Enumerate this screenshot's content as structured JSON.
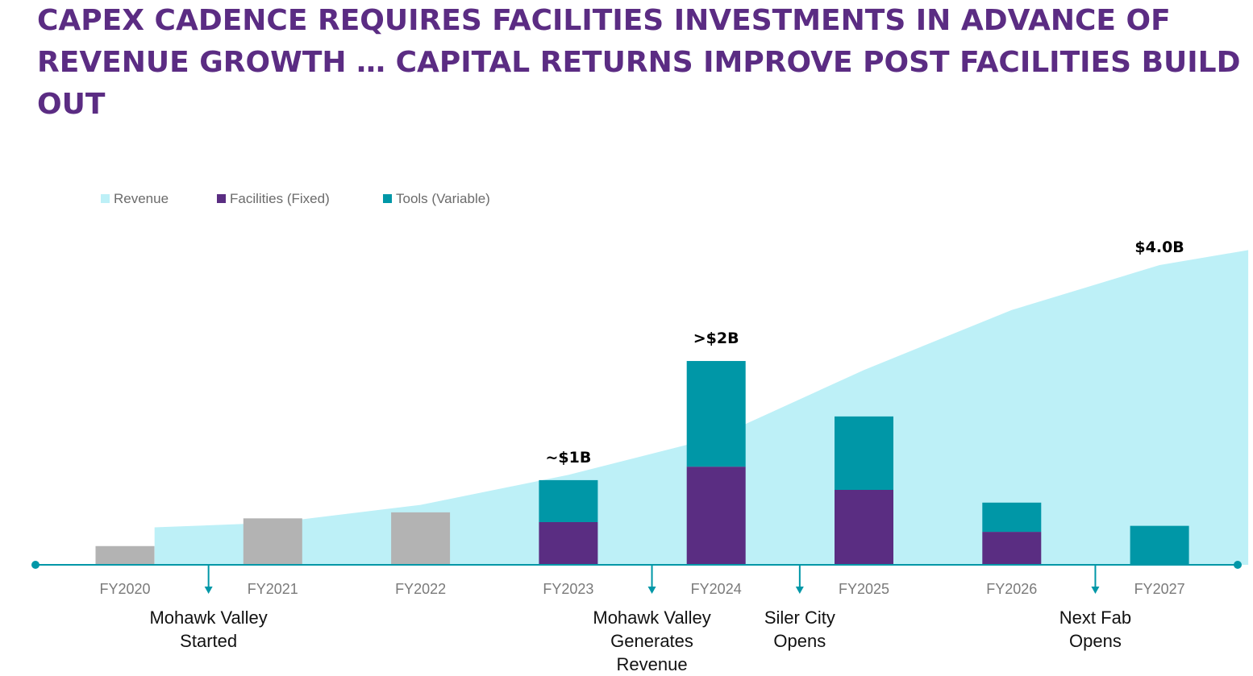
{
  "title": "CAPEX CADENCE REQUIRES FACILITIES INVESTMENTS IN ADVANCE OF REVENUE GROWTH … CAPITAL RETURNS IMPROVE POST FACILITIES BUILD OUT",
  "colors": {
    "title": "#5b2c83",
    "revenue": "#bdf0f7",
    "facilities": "#5a2d82",
    "tools": "#0097a7",
    "historical": "#b3b3b3",
    "axis": "#0097a7"
  },
  "chart_data": {
    "type": "bar",
    "categories": [
      "FY2020",
      "FY2021",
      "FY2022",
      "FY2023",
      "FY2024",
      "FY2025",
      "FY2026",
      "FY2027"
    ],
    "legend": [
      "Revenue",
      "Facilities (Fixed)",
      "Tools (Variable)"
    ],
    "legend_position": "top-left",
    "grid": false,
    "ylim": [
      0,
      4.5
    ],
    "capex_total": [
      0.25,
      0.62,
      0.7,
      1.1,
      2.7,
      2.0,
      0.85,
      0.5
    ],
    "series": [
      {
        "name": "Facilities (Fixed)",
        "values": [
          0,
          0,
          0,
          0.57,
          1.31,
          1.0,
          0.44,
          0
        ]
      },
      {
        "name": "Tools (Variable)",
        "values": [
          0,
          0,
          0,
          0.56,
          1.41,
          0.98,
          0.39,
          0.52
        ]
      }
    ],
    "historical_series_values": [
      0.25,
      0.62,
      0.7,
      0,
      0,
      0,
      0,
      0
    ],
    "revenue": {
      "name": "Revenue",
      "x": [
        0.2,
        1.0,
        2.0,
        3.0,
        4.0,
        5.0,
        6.0,
        7.0,
        7.6
      ],
      "values": [
        0.5,
        0.56,
        0.8,
        1.2,
        1.7,
        2.6,
        3.4,
        4.0,
        4.2
      ]
    },
    "annotations": [
      {
        "category": "FY2023",
        "text": "~$1B"
      },
      {
        "category": "FY2024",
        "text": ">$2B"
      },
      {
        "category": "FY2027",
        "text": "$4.0B"
      }
    ],
    "milestones": [
      {
        "after": "FY2020",
        "lines": [
          "Mohawk Valley",
          "Started"
        ]
      },
      {
        "after": "FY2023",
        "lines": [
          "Mohawk Valley",
          "Generates",
          "Revenue"
        ]
      },
      {
        "after": "FY2024",
        "lines": [
          "Siler City",
          "Opens"
        ]
      },
      {
        "after": "FY2026",
        "lines": [
          "Next Fab",
          "Opens"
        ]
      }
    ]
  }
}
